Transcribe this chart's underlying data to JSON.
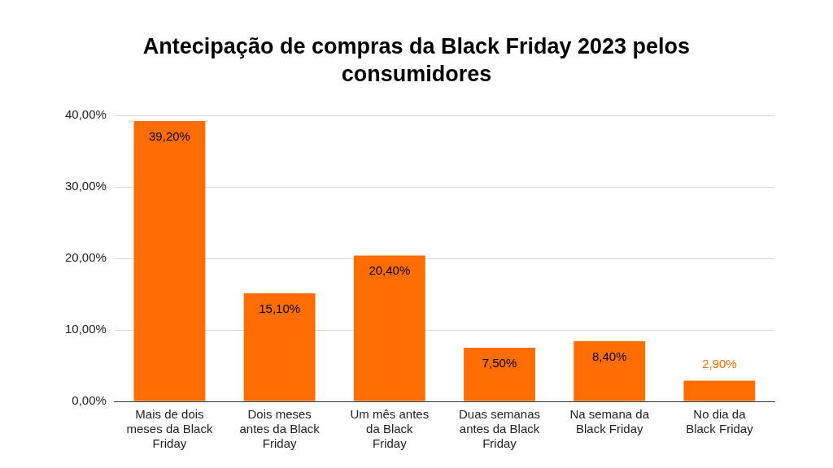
{
  "chart_data": {
    "type": "bar",
    "title": "Antecipação de compras da Black Friday 2023 pelos consumidores",
    "categories": [
      "Mais de dois meses da Black Friday",
      "Dois meses antes da Black Friday",
      "Um mês antes da Black Friday",
      "Duas semanas antes da Black Friday",
      "Na semana da Black Friday",
      "No dia da Black Friday"
    ],
    "values": [
      39.2,
      15.1,
      20.4,
      7.5,
      8.4,
      2.9
    ],
    "value_labels": [
      "39,20%",
      "15,10%",
      "20,40%",
      "7,50%",
      "8,40%",
      "2,90%"
    ],
    "color": "#ff6d01",
    "ylim": [
      0,
      40
    ],
    "yticks": [
      {
        "value": 0,
        "label": "0,00%"
      },
      {
        "value": 10,
        "label": "10,00%"
      },
      {
        "value": 20,
        "label": "20,00%"
      },
      {
        "value": 30,
        "label": "30,00%"
      },
      {
        "value": 40,
        "label": "40,00%"
      }
    ],
    "grid": "y",
    "legend": false
  }
}
